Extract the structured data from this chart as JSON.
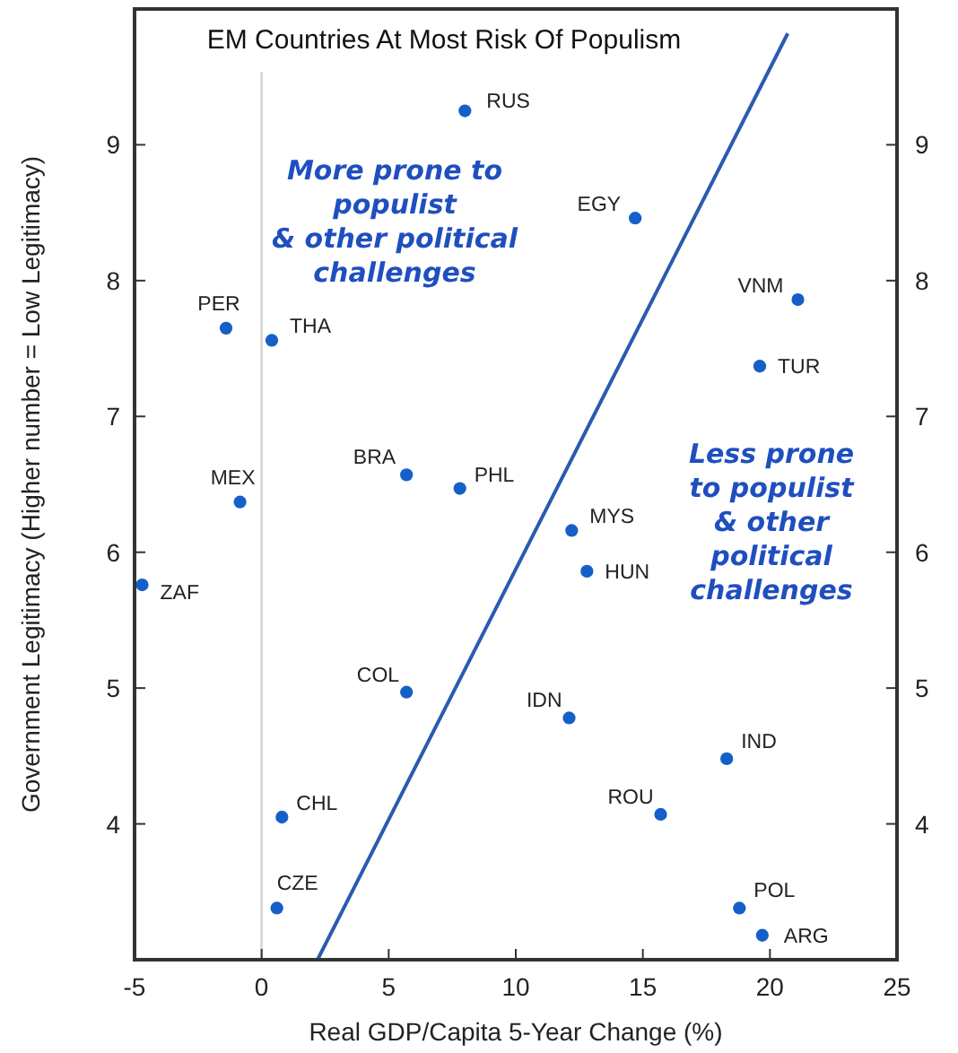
{
  "chart_data": {
    "type": "scatter",
    "title": "EM Countries At Most Risk Of Populism",
    "xlabel": "Real GDP/Capita 5-Year Change (%)",
    "ylabel": "Government Legitimacy (Higher number = Low Legitimacy)",
    "xlim": [
      -5,
      25
    ],
    "xticks": [
      -5,
      0,
      5,
      10,
      15,
      20,
      25
    ],
    "ylim": [
      3,
      10
    ],
    "yticks": [
      4,
      5,
      6,
      7,
      8,
      9
    ],
    "y2lim": [
      3,
      10
    ],
    "y2ticks": [
      4,
      5,
      6,
      7,
      8,
      9
    ],
    "grid": false,
    "marker": "circle",
    "ref_lines": [
      {
        "axis": "x",
        "value": 0,
        "color": "#d9d9d9"
      }
    ],
    "annotations": [
      "More prone to\npopulist\n& other political\nchallenges",
      "Less prone\nto populist\n& other\npolitical\nchallenges"
    ],
    "series": [
      {
        "name": "RUS",
        "color": "#1560c8",
        "x": [
          8.0
        ],
        "values": [
          9.25
        ]
      },
      {
        "name": "EGY",
        "color": "#1560c8",
        "x": [
          14.7
        ],
        "values": [
          8.46
        ]
      },
      {
        "name": "VNM",
        "color": "#1560c8",
        "x": [
          21.1
        ],
        "values": [
          7.86
        ]
      },
      {
        "name": "TUR",
        "color": "#1560c8",
        "x": [
          19.6
        ],
        "values": [
          7.37
        ]
      },
      {
        "name": "PER",
        "color": "#1560c8",
        "x": [
          -1.4
        ],
        "values": [
          7.65
        ]
      },
      {
        "name": "THA",
        "color": "#1560c8",
        "x": [
          0.4
        ],
        "values": [
          7.56
        ]
      },
      {
        "name": "BRA",
        "color": "#1560c8",
        "x": [
          5.7
        ],
        "values": [
          6.57
        ]
      },
      {
        "name": "PHL",
        "color": "#1560c8",
        "x": [
          7.8
        ],
        "values": [
          6.47
        ]
      },
      {
        "name": "MEX",
        "color": "#1560c8",
        "x": [
          -0.85
        ],
        "values": [
          6.37
        ]
      },
      {
        "name": "MYS",
        "color": "#1560c8",
        "x": [
          12.2
        ],
        "values": [
          6.16
        ]
      },
      {
        "name": "HUN",
        "color": "#1560c8",
        "x": [
          12.8
        ],
        "values": [
          5.86
        ]
      },
      {
        "name": "ZAF",
        "color": "#1560c8",
        "x": [
          -4.7
        ],
        "values": [
          5.76
        ]
      },
      {
        "name": "COL",
        "color": "#1560c8",
        "x": [
          5.7
        ],
        "values": [
          4.97
        ]
      },
      {
        "name": "IDN",
        "color": "#1560c8",
        "x": [
          12.1
        ],
        "values": [
          4.78
        ]
      },
      {
        "name": "IND",
        "color": "#1560c8",
        "x": [
          18.3
        ],
        "values": [
          4.48
        ]
      },
      {
        "name": "ROU",
        "color": "#1560c8",
        "x": [
          15.7
        ],
        "values": [
          4.07
        ]
      },
      {
        "name": "CHL",
        "color": "#1560c8",
        "x": [
          0.8
        ],
        "values": [
          4.05
        ]
      },
      {
        "name": "CZE",
        "color": "#1560c8",
        "x": [
          0.6
        ],
        "values": [
          3.38
        ]
      },
      {
        "name": "POL",
        "color": "#1560c8",
        "x": [
          18.8
        ],
        "values": [
          3.38
        ]
      },
      {
        "name": "ARG",
        "color": "#1560c8",
        "x": [
          19.7
        ],
        "values": [
          3.18
        ]
      },
      {
        "type": "line",
        "marker": "none",
        "color": "#2a5bb0",
        "x": [
          2.2,
          20.7
        ],
        "values": [
          3.0,
          9.82
        ]
      }
    ]
  }
}
